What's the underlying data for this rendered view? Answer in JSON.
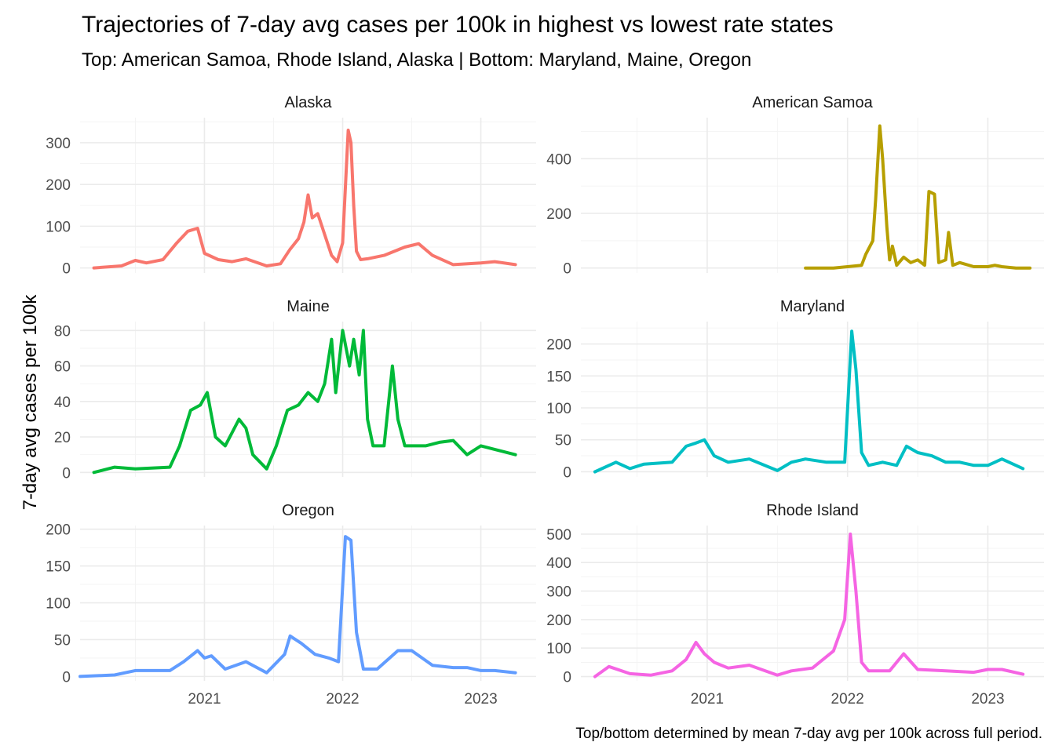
{
  "chart_data": {
    "type": "line",
    "title": "Trajectories of 7-day avg cases per 100k in highest vs lowest rate states",
    "subtitle": "Top: American Samoa, Rhode Island, Alaska  | Bottom: Maryland, Maine, Oregon",
    "ylabel": "7-day avg cases per 100k",
    "caption": "Top/bottom determined by mean 7-day avg per 100k across full period.",
    "x_ticks": [
      "2021",
      "2022",
      "2023"
    ],
    "xlim": [
      2020.1,
      2023.4
    ],
    "grid": true,
    "panels": [
      {
        "name": "Alaska",
        "color": "#F8766D",
        "ylim": [
          -12,
          360
        ],
        "yticks": [
          0,
          100,
          200,
          300
        ],
        "x": [
          2020.2,
          2020.4,
          2020.5,
          2020.58,
          2020.7,
          2020.8,
          2020.88,
          2020.95,
          2021.0,
          2021.1,
          2021.2,
          2021.3,
          2021.45,
          2021.55,
          2021.62,
          2021.68,
          2021.72,
          2021.75,
          2021.78,
          2021.82,
          2021.87,
          2021.92,
          2021.96,
          2022.0,
          2022.04,
          2022.06,
          2022.08,
          2022.1,
          2022.13,
          2022.18,
          2022.3,
          2022.45,
          2022.55,
          2022.65,
          2022.8,
          2023.0,
          2023.1,
          2023.25
        ],
        "y": [
          0,
          5,
          18,
          12,
          20,
          60,
          88,
          95,
          35,
          20,
          15,
          22,
          5,
          10,
          45,
          70,
          110,
          175,
          120,
          130,
          80,
          30,
          15,
          60,
          330,
          300,
          150,
          40,
          20,
          22,
          30,
          50,
          58,
          30,
          8,
          12,
          15,
          8
        ]
      },
      {
        "name": "American Samoa",
        "color": "#B79F00",
        "ylim": [
          -18,
          550
        ],
        "yticks": [
          0,
          200,
          400
        ],
        "x": [
          2021.7,
          2021.9,
          2022.0,
          2022.1,
          2022.13,
          2022.18,
          2022.2,
          2022.23,
          2022.25,
          2022.28,
          2022.3,
          2022.32,
          2022.35,
          2022.4,
          2022.45,
          2022.5,
          2022.55,
          2022.58,
          2022.62,
          2022.65,
          2022.7,
          2022.72,
          2022.75,
          2022.8,
          2022.9,
          2023.0,
          2023.05,
          2023.1,
          2023.2,
          2023.3
        ],
        "y": [
          0,
          0,
          5,
          10,
          50,
          100,
          250,
          520,
          400,
          150,
          30,
          80,
          10,
          40,
          20,
          30,
          10,
          280,
          270,
          20,
          30,
          130,
          10,
          20,
          5,
          5,
          10,
          5,
          0,
          0
        ]
      },
      {
        "name": "Maine",
        "color": "#00BA38",
        "ylim": [
          -2.5,
          85
        ],
        "yticks": [
          0,
          20,
          40,
          60,
          80
        ],
        "x": [
          2020.2,
          2020.35,
          2020.5,
          2020.75,
          2020.82,
          2020.9,
          2020.97,
          2021.02,
          2021.08,
          2021.15,
          2021.25,
          2021.3,
          2021.35,
          2021.45,
          2021.52,
          2021.6,
          2021.68,
          2021.75,
          2021.82,
          2021.87,
          2021.92,
          2021.95,
          2022.0,
          2022.05,
          2022.08,
          2022.12,
          2022.15,
          2022.18,
          2022.22,
          2022.3,
          2022.36,
          2022.4,
          2022.45,
          2022.6,
          2022.7,
          2022.8,
          2022.9,
          2023.0,
          2023.15,
          2023.25
        ],
        "y": [
          0,
          3,
          2,
          3,
          15,
          35,
          38,
          45,
          20,
          15,
          30,
          25,
          10,
          2,
          15,
          35,
          38,
          45,
          40,
          50,
          75,
          45,
          80,
          60,
          75,
          55,
          80,
          30,
          15,
          15,
          60,
          30,
          15,
          15,
          17,
          18,
          10,
          15,
          12,
          10
        ]
      },
      {
        "name": "Maryland",
        "color": "#00BFC4",
        "ylim": [
          -8,
          235
        ],
        "yticks": [
          0,
          50,
          100,
          150,
          200
        ],
        "x": [
          2020.2,
          2020.35,
          2020.45,
          2020.55,
          2020.75,
          2020.85,
          2020.92,
          2020.98,
          2021.05,
          2021.15,
          2021.3,
          2021.5,
          2021.6,
          2021.7,
          2021.85,
          2021.98,
          2022.03,
          2022.06,
          2022.1,
          2022.15,
          2022.25,
          2022.35,
          2022.42,
          2022.5,
          2022.6,
          2022.7,
          2022.8,
          2022.9,
          2023.0,
          2023.1,
          2023.25
        ],
        "y": [
          0,
          15,
          5,
          12,
          15,
          40,
          45,
          50,
          25,
          15,
          20,
          2,
          15,
          20,
          15,
          15,
          220,
          160,
          30,
          10,
          15,
          10,
          40,
          30,
          25,
          15,
          15,
          10,
          10,
          20,
          5
        ]
      },
      {
        "name": "Oregon",
        "color": "#619CFF",
        "ylim": [
          -6,
          205
        ],
        "yticks": [
          0,
          50,
          100,
          150,
          200
        ],
        "x": [
          2020.1,
          2020.35,
          2020.5,
          2020.75,
          2020.85,
          2020.95,
          2021.0,
          2021.05,
          2021.15,
          2021.3,
          2021.45,
          2021.58,
          2021.62,
          2021.7,
          2021.8,
          2021.9,
          2021.97,
          2022.02,
          2022.06,
          2022.1,
          2022.15,
          2022.25,
          2022.4,
          2022.5,
          2022.65,
          2022.8,
          2022.9,
          2023.0,
          2023.1,
          2023.25
        ],
        "y": [
          0,
          2,
          8,
          8,
          20,
          35,
          25,
          28,
          10,
          20,
          5,
          30,
          55,
          45,
          30,
          25,
          20,
          190,
          185,
          60,
          10,
          10,
          35,
          35,
          15,
          12,
          12,
          8,
          8,
          5
        ]
      },
      {
        "name": "Rhode Island",
        "color": "#F564E3",
        "ylim": [
          -15,
          530
        ],
        "yticks": [
          0,
          100,
          200,
          300,
          400,
          500
        ],
        "x": [
          2020.2,
          2020.3,
          2020.45,
          2020.6,
          2020.75,
          2020.85,
          2020.92,
          2020.98,
          2021.05,
          2021.15,
          2021.3,
          2021.5,
          2021.6,
          2021.75,
          2021.9,
          2021.98,
          2022.02,
          2022.06,
          2022.1,
          2022.15,
          2022.3,
          2022.4,
          2022.5,
          2022.7,
          2022.9,
          2023.0,
          2023.1,
          2023.25
        ],
        "y": [
          0,
          35,
          10,
          5,
          20,
          60,
          120,
          80,
          50,
          30,
          40,
          5,
          20,
          30,
          90,
          200,
          500,
          300,
          50,
          20,
          20,
          80,
          25,
          20,
          15,
          25,
          25,
          8
        ]
      }
    ]
  }
}
